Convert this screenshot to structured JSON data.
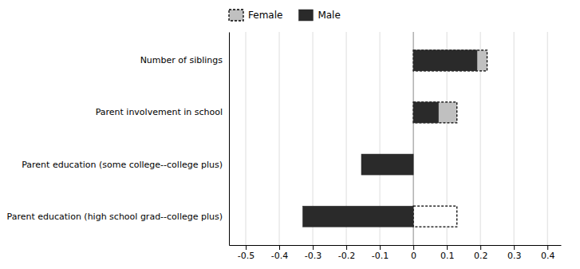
{
  "chart_data": {
    "type": "bar",
    "orientation": "horizontal",
    "categories": [
      "Parent education (high school grad--college plus)",
      "Parent education (some college--college plus)",
      "Parent involvement in school",
      "Number of siblings"
    ],
    "series": [
      {
        "name": "Female",
        "color": "#c0c0c0",
        "colors": [
          "#ffffff",
          "#c0c0c0",
          "#c0c0c0",
          "#c0c0c0"
        ],
        "line_style": "dashed",
        "values": [
          0.13,
          null,
          0.13,
          0.22
        ]
      },
      {
        "name": "Male",
        "color": "#2a2a2a",
        "values": [
          -0.33,
          -0.155,
          0.075,
          0.19
        ]
      }
    ],
    "xlim": [
      -0.55,
      0.44
    ],
    "xticks": [
      -0.5,
      -0.4,
      -0.3,
      -0.2,
      -0.1,
      0,
      0.1,
      0.2,
      0.3,
      0.4
    ],
    "grid": true,
    "legend": "top"
  }
}
